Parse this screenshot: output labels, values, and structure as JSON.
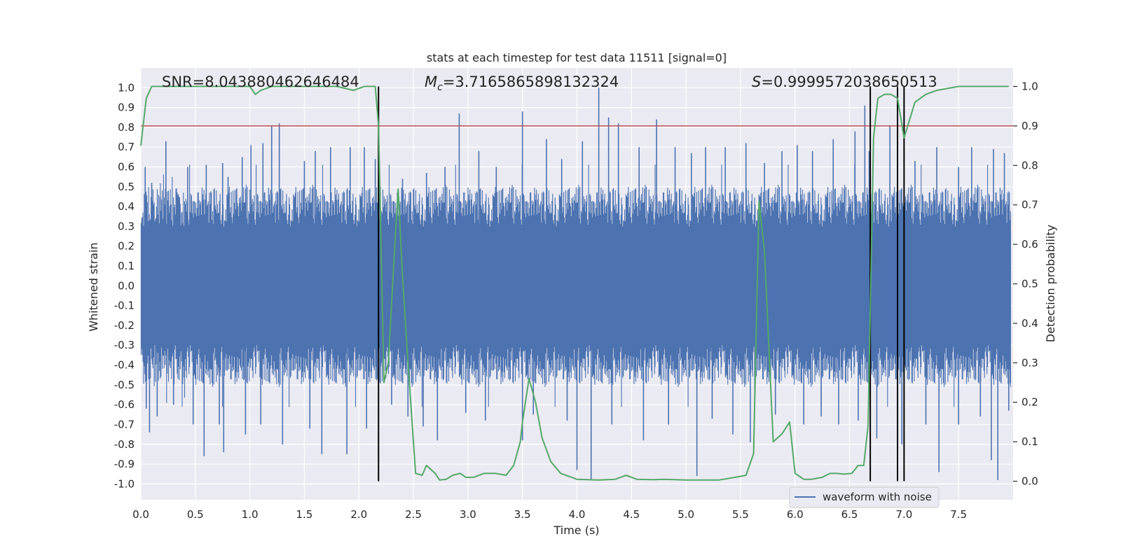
{
  "chart_data": {
    "type": "line",
    "title": "stats at each timestep for test data 11511 [signal=0]",
    "xlabel": "Time (s)",
    "ylabel": "Whitened strain",
    "y2label": "Detection probability",
    "xlim": [
      0.0,
      8.0
    ],
    "ylim": [
      -1.08,
      1.1
    ],
    "y2lim": [
      -0.047,
      1.047
    ],
    "xticks": [
      "0.0",
      "0.5",
      "1.0",
      "1.5",
      "2.0",
      "2.5",
      "3.0",
      "3.5",
      "4.0",
      "4.5",
      "5.0",
      "5.5",
      "6.0",
      "6.5",
      "7.0",
      "7.5"
    ],
    "yticks": [
      "1.0",
      "0.9",
      "0.8",
      "0.7",
      "0.6",
      "0.5",
      "0.4",
      "0.3",
      "0.2",
      "0.1",
      "0.0",
      "-0.1",
      "-0.2",
      "-0.3",
      "-0.4",
      "-0.5",
      "-0.6",
      "-0.7",
      "-0.8",
      "-0.9",
      "-1.0"
    ],
    "y2ticks": [
      "1.0",
      "0.9",
      "0.8",
      "0.7",
      "0.6",
      "0.5",
      "0.4",
      "0.3",
      "0.2",
      "0.1",
      "0.0"
    ],
    "legend": {
      "label": "waveform with noise",
      "placement": "lower-right"
    },
    "annotations": {
      "snr": "SNR=8.043880462646484",
      "mc_symbol": "M",
      "mc_sub": "c",
      "mc_value": "=3.7165865898132324",
      "s_symbol": "S",
      "s_value": "=0.9999572038650513"
    },
    "threshold": {
      "y2": 0.9,
      "color": "#c44e52"
    },
    "vlines": [
      2.18,
      6.69,
      6.94,
      7.0
    ],
    "vline_range": [
      0.0,
      1.0
    ],
    "colors": {
      "waveform": "#4c72b0",
      "probability": "#55a868",
      "vline": "#000000",
      "background": "#eaeaf2",
      "grid": "#ffffff"
    },
    "waveform": {
      "name": "waveform with noise",
      "envelope_note": "dense noise trace; spikes estimated",
      "pos_spikes": [
        [
          0.04,
          0.6
        ],
        [
          0.1,
          0.52
        ],
        [
          0.23,
          0.73
        ],
        [
          0.43,
          0.6
        ],
        [
          0.6,
          0.61
        ],
        [
          0.75,
          0.62
        ],
        [
          0.8,
          0.55
        ],
        [
          0.93,
          0.65
        ],
        [
          1.01,
          0.71
        ],
        [
          1.12,
          0.72
        ],
        [
          1.2,
          0.81
        ],
        [
          1.27,
          0.82
        ],
        [
          1.5,
          0.63
        ],
        [
          1.6,
          0.68
        ],
        [
          1.74,
          0.7
        ],
        [
          1.92,
          0.7
        ],
        [
          2.05,
          0.7
        ],
        [
          2.15,
          0.64
        ],
        [
          2.4,
          0.54
        ],
        [
          2.62,
          0.57
        ],
        [
          2.79,
          0.6
        ],
        [
          2.92,
          0.87
        ],
        [
          3.1,
          0.68
        ],
        [
          3.26,
          0.6
        ],
        [
          3.5,
          0.88
        ],
        [
          3.72,
          0.74
        ],
        [
          3.86,
          0.64
        ],
        [
          4.05,
          0.73
        ],
        [
          4.2,
          1.0
        ],
        [
          4.29,
          0.85
        ],
        [
          4.38,
          0.82
        ],
        [
          4.57,
          0.7
        ],
        [
          4.73,
          0.84
        ],
        [
          4.9,
          0.7
        ],
        [
          5.05,
          0.67
        ],
        [
          5.18,
          0.7
        ],
        [
          5.36,
          0.7
        ],
        [
          5.55,
          0.72
        ],
        [
          5.72,
          0.62
        ],
        [
          5.88,
          0.68
        ],
        [
          6.02,
          0.71
        ],
        [
          6.16,
          0.68
        ],
        [
          6.35,
          0.74
        ],
        [
          6.55,
          0.78
        ],
        [
          6.64,
          0.91
        ],
        [
          6.68,
          0.68
        ],
        [
          6.87,
          0.81
        ],
        [
          7.1,
          0.63
        ],
        [
          7.3,
          0.7
        ],
        [
          7.5,
          0.6
        ],
        [
          7.62,
          0.7
        ],
        [
          7.82,
          0.69
        ],
        [
          7.92,
          0.67
        ]
      ],
      "neg_spikes": [
        [
          0.05,
          -0.62
        ],
        [
          0.08,
          -0.74
        ],
        [
          0.15,
          -0.66
        ],
        [
          0.3,
          -0.6
        ],
        [
          0.48,
          -0.7
        ],
        [
          0.58,
          -0.86
        ],
        [
          0.72,
          -0.7
        ],
        [
          0.76,
          -0.84
        ],
        [
          0.96,
          -0.75
        ],
        [
          1.1,
          -0.7
        ],
        [
          1.3,
          -0.8
        ],
        [
          1.55,
          -0.72
        ],
        [
          1.66,
          -0.85
        ],
        [
          1.89,
          -0.85
        ],
        [
          2.07,
          -0.72
        ],
        [
          2.3,
          -0.6
        ],
        [
          2.45,
          -0.66
        ],
        [
          2.59,
          -0.71
        ],
        [
          2.72,
          -0.78
        ],
        [
          2.98,
          -0.64
        ],
        [
          3.16,
          -0.68
        ],
        [
          3.5,
          -0.78
        ],
        [
          3.6,
          -0.65
        ],
        [
          3.91,
          -0.68
        ],
        [
          4.0,
          -0.93
        ],
        [
          4.13,
          -0.98
        ],
        [
          4.32,
          -0.7
        ],
        [
          4.61,
          -0.78
        ],
        [
          4.84,
          -0.7
        ],
        [
          5.1,
          -0.96
        ],
        [
          5.24,
          -0.67
        ],
        [
          5.43,
          -0.75
        ],
        [
          5.59,
          -0.79
        ],
        [
          5.82,
          -0.65
        ],
        [
          6.08,
          -0.7
        ],
        [
          6.24,
          -0.66
        ],
        [
          6.4,
          -0.7
        ],
        [
          6.58,
          -0.68
        ],
        [
          6.75,
          -0.77
        ],
        [
          6.98,
          -0.8
        ],
        [
          7.2,
          -0.7
        ],
        [
          7.32,
          -0.94
        ],
        [
          7.5,
          -0.7
        ],
        [
          7.7,
          -0.66
        ],
        [
          7.8,
          -0.88
        ],
        [
          7.86,
          -0.98
        ],
        [
          7.96,
          -0.63
        ]
      ]
    },
    "probability": {
      "name": "detection probability",
      "x": [
        0.0,
        0.05,
        0.1,
        0.15,
        0.3,
        0.6,
        1.0,
        1.05,
        1.1,
        1.2,
        1.4,
        1.6,
        1.8,
        1.95,
        2.05,
        2.15,
        2.18,
        2.23,
        2.27,
        2.32,
        2.36,
        2.4,
        2.45,
        2.52,
        2.58,
        2.62,
        2.7,
        2.74,
        2.8,
        2.86,
        2.93,
        2.98,
        3.05,
        3.15,
        3.25,
        3.35,
        3.42,
        3.48,
        3.5,
        3.56,
        3.62,
        3.68,
        3.76,
        3.85,
        4.0,
        4.2,
        4.35,
        4.45,
        4.55,
        4.7,
        4.8,
        5.0,
        5.3,
        5.45,
        5.55,
        5.62,
        5.67,
        5.72,
        5.8,
        5.88,
        5.95,
        6.0,
        6.08,
        6.15,
        6.25,
        6.32,
        6.38,
        6.45,
        6.52,
        6.58,
        6.63,
        6.67,
        6.72,
        6.76,
        6.82,
        6.88,
        6.94,
        7.0,
        7.1,
        7.2,
        7.3,
        7.5,
        7.7,
        7.8,
        7.96
      ],
      "y": [
        0.85,
        0.97,
        1.0,
        1.0,
        1.0,
        1.0,
        1.0,
        0.98,
        0.99,
        1.0,
        1.0,
        1.0,
        1.0,
        0.99,
        1.0,
        1.0,
        0.9,
        0.25,
        0.3,
        0.55,
        0.74,
        0.52,
        0.3,
        0.02,
        0.015,
        0.04,
        0.02,
        0.003,
        0.005,
        0.015,
        0.02,
        0.01,
        0.01,
        0.02,
        0.02,
        0.015,
        0.04,
        0.1,
        0.15,
        0.26,
        0.2,
        0.11,
        0.05,
        0.02,
        0.005,
        0.003,
        0.005,
        0.015,
        0.005,
        0.004,
        0.005,
        0.003,
        0.003,
        0.01,
        0.015,
        0.07,
        0.71,
        0.58,
        0.1,
        0.12,
        0.15,
        0.02,
        0.005,
        0.005,
        0.01,
        0.02,
        0.02,
        0.018,
        0.02,
        0.04,
        0.04,
        0.14,
        0.87,
        0.97,
        0.98,
        0.98,
        0.97,
        0.87,
        0.96,
        0.98,
        0.99,
        1.0,
        1.0,
        1.0,
        1.0
      ]
    }
  }
}
